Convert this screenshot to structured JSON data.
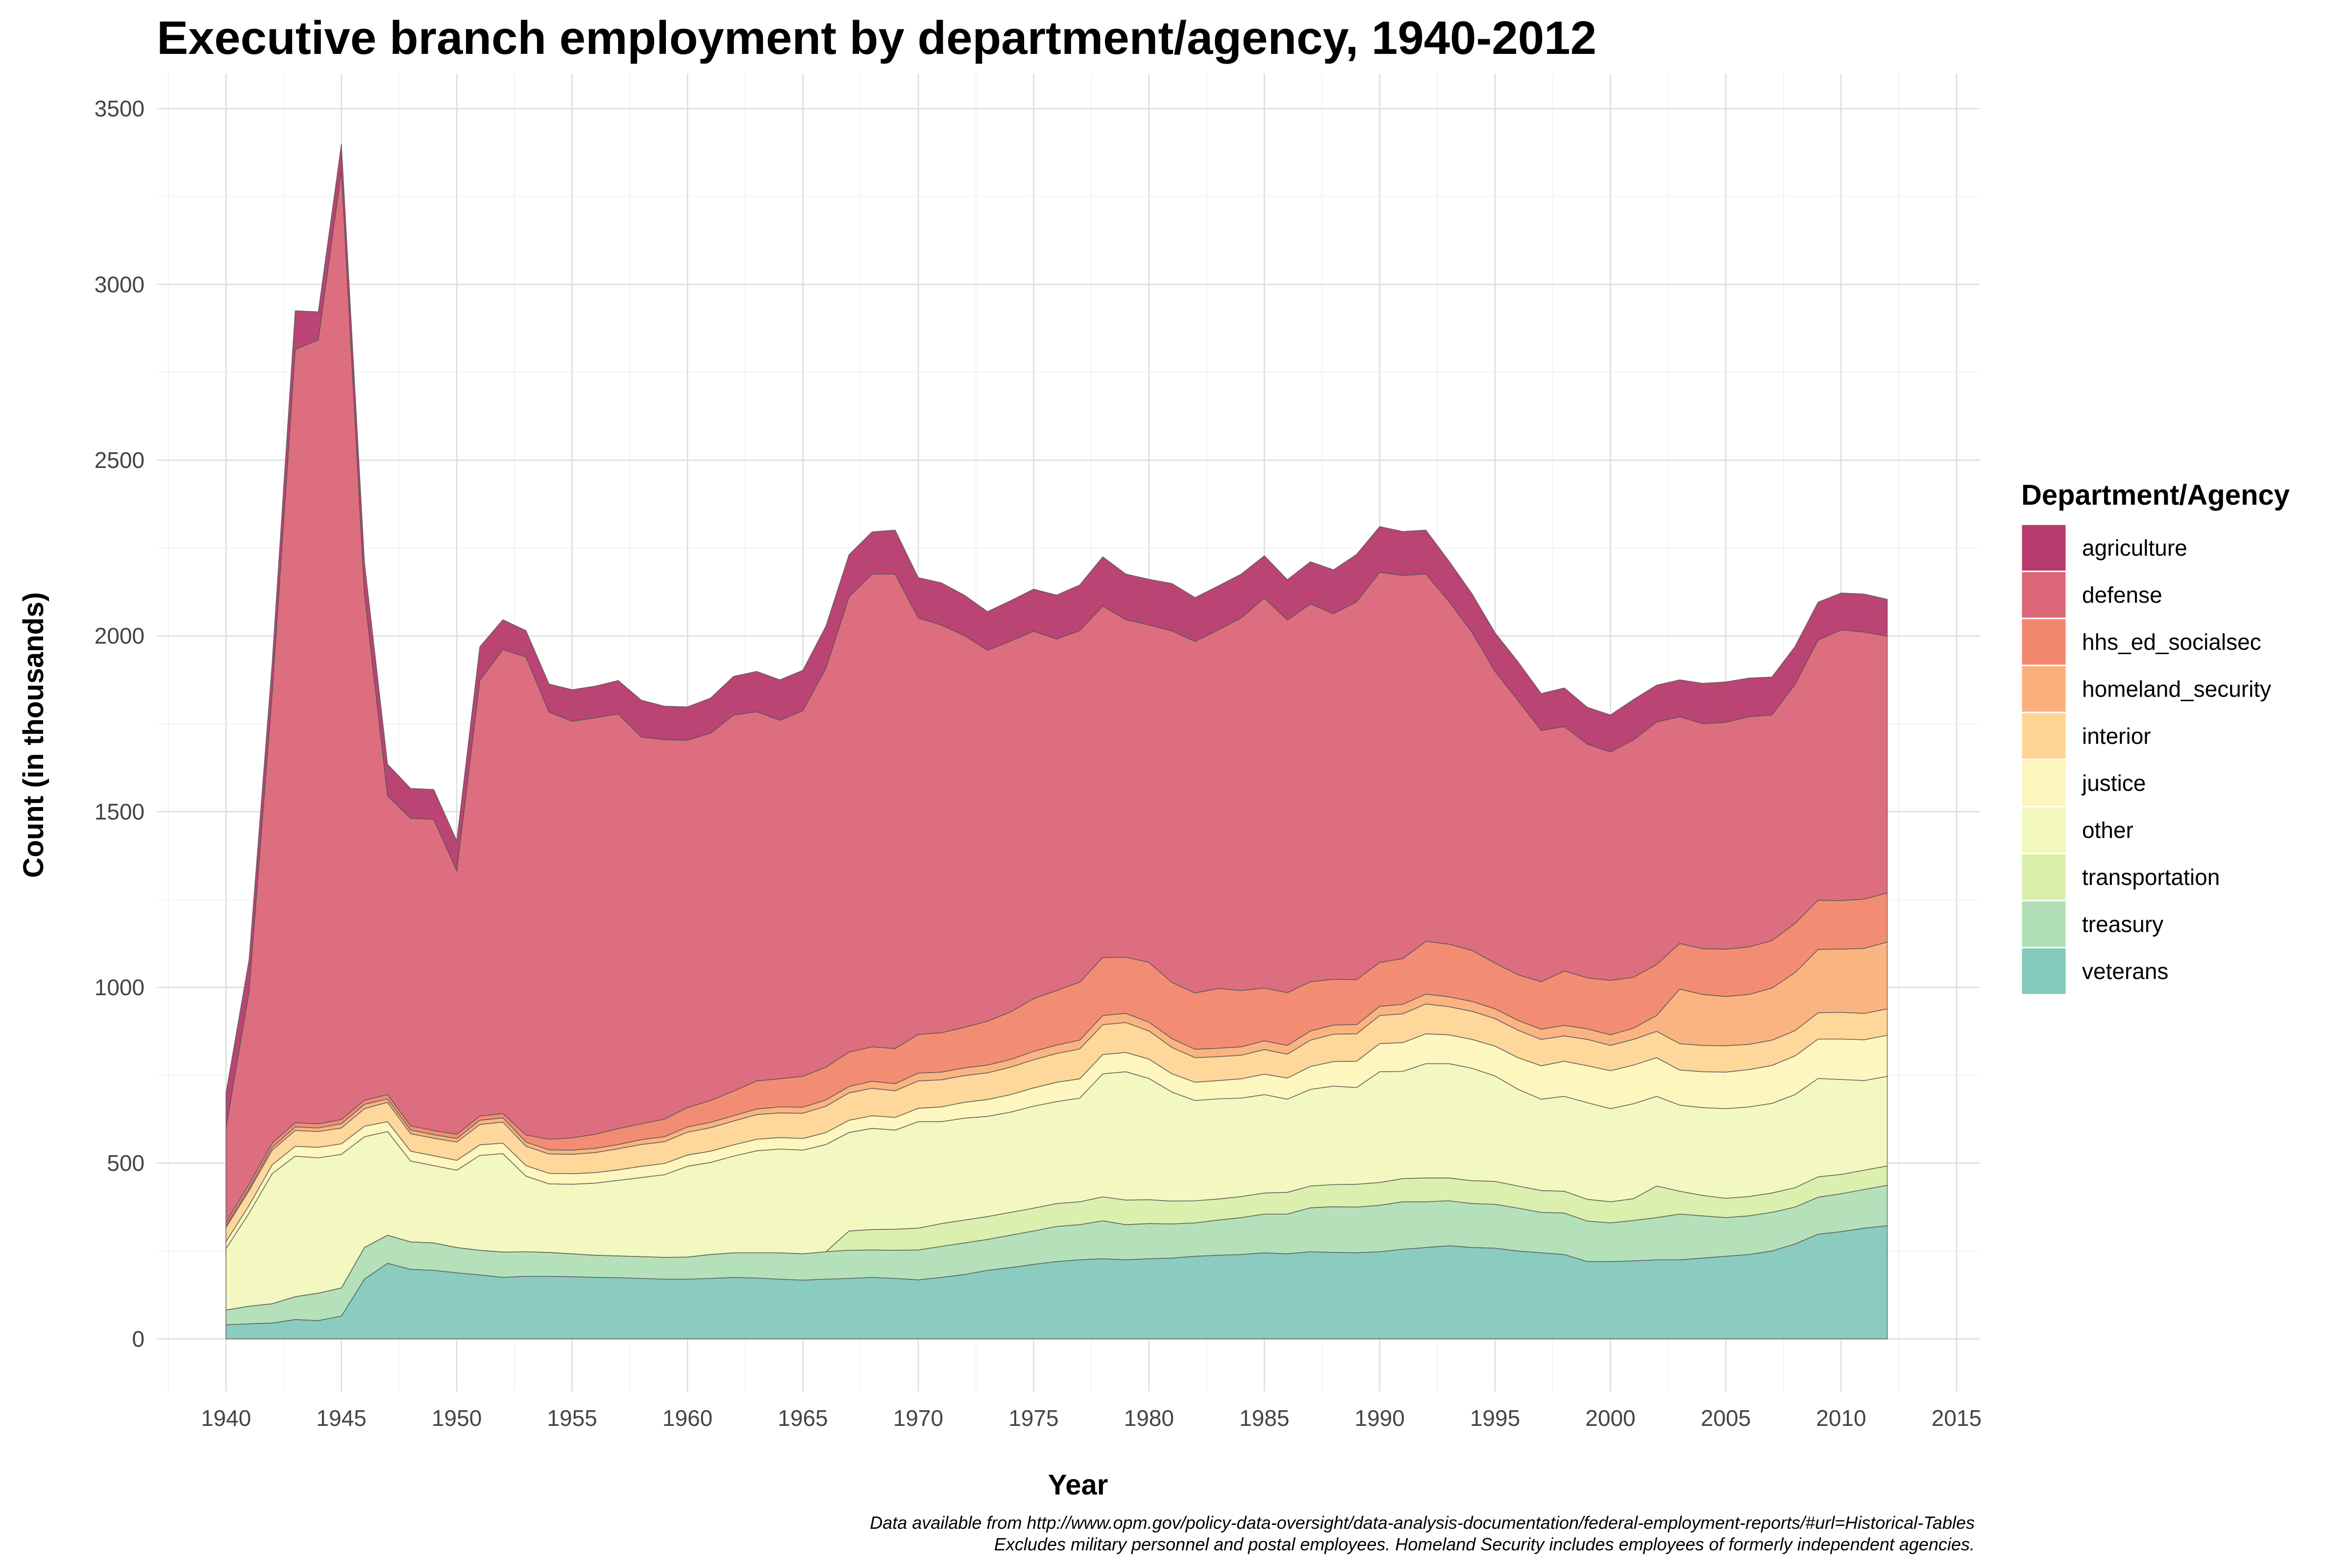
{
  "chart_data": {
    "type": "area",
    "title": "Executive branch employment by department/agency, 1940-2012",
    "xlabel": "Year",
    "ylabel": "Count (in thousands)",
    "xlim": [
      1937,
      2016
    ],
    "ylim": [
      -150,
      3600
    ],
    "x_ticks": [
      1940,
      1945,
      1950,
      1955,
      1960,
      1965,
      1970,
      1975,
      1980,
      1985,
      1990,
      1995,
      2000,
      2005,
      2010,
      2015
    ],
    "y_ticks": [
      0,
      500,
      1000,
      1500,
      2000,
      2500,
      3000,
      3500
    ],
    "x_tick_labels": [
      "1940",
      "1945",
      "1950",
      "1955",
      "1960",
      "1965",
      "1970",
      "1975",
      "1980",
      "1985",
      "1990",
      "1995",
      "2000",
      "2005",
      "2010",
      "2015"
    ],
    "y_tick_labels": [
      "0",
      "500",
      "1000",
      "1500",
      "2000",
      "2500",
      "3000",
      "3500"
    ],
    "grid": true,
    "stacked": true,
    "legend": {
      "title": "Department/Agency",
      "position": "right",
      "entries": [
        "agriculture",
        "defense",
        "hhs_ed_socialsec",
        "homeland_security",
        "interior",
        "justice",
        "other",
        "transportation",
        "treasury",
        "veterans"
      ]
    },
    "x": [
      1940,
      1941,
      1942,
      1943,
      1944,
      1945,
      1946,
      1947,
      1948,
      1949,
      1950,
      1951,
      1952,
      1953,
      1954,
      1955,
      1956,
      1957,
      1958,
      1959,
      1960,
      1961,
      1962,
      1963,
      1964,
      1965,
      1966,
      1967,
      1968,
      1969,
      1970,
      1971,
      1972,
      1973,
      1974,
      1975,
      1976,
      1977,
      1978,
      1979,
      1980,
      1981,
      1982,
      1983,
      1984,
      1985,
      1986,
      1987,
      1988,
      1989,
      1990,
      1991,
      1992,
      1993,
      1994,
      1995,
      1996,
      1997,
      1998,
      1999,
      2000,
      2001,
      2002,
      2003,
      2004,
      2005,
      2006,
      2007,
      2008,
      2009,
      2010,
      2011,
      2012
    ],
    "series": [
      {
        "name": "veterans",
        "color": "#84c9bd",
        "values": [
          40,
          43,
          45,
          55,
          52,
          65,
          170,
          215,
          198,
          195,
          188,
          182,
          175,
          178,
          178,
          177,
          175,
          174,
          172,
          170,
          170,
          172,
          175,
          173,
          170,
          167,
          170,
          172,
          175,
          172,
          168,
          175,
          183,
          195,
          203,
          212,
          220,
          225,
          228,
          225,
          228,
          230,
          235,
          238,
          240,
          245,
          242,
          248,
          246,
          245,
          248,
          255,
          260,
          265,
          260,
          258,
          250,
          245,
          240,
          220,
          220,
          222,
          225,
          225,
          230,
          235,
          240,
          250,
          270,
          298,
          305,
          315,
          322
        ]
      },
      {
        "name": "treasury",
        "color": "#b1dfb6",
        "values": [
          42,
          50,
          55,
          65,
          78,
          80,
          90,
          80,
          78,
          78,
          72,
          70,
          72,
          70,
          68,
          65,
          63,
          62,
          62,
          62,
          63,
          68,
          70,
          72,
          75,
          75,
          78,
          80,
          78,
          80,
          85,
          88,
          90,
          88,
          92,
          95,
          100,
          100,
          108,
          100,
          100,
          97,
          95,
          100,
          105,
          110,
          113,
          125,
          130,
          130,
          132,
          135,
          130,
          128,
          125,
          125,
          122,
          115,
          118,
          115,
          110,
          115,
          120,
          130,
          120,
          110,
          110,
          110,
          105,
          105,
          108,
          110,
          115
        ]
      },
      {
        "name": "transportation",
        "color": "#d9efaa",
        "values": [
          0,
          0,
          0,
          0,
          0,
          0,
          0,
          0,
          0,
          0,
          0,
          0,
          0,
          0,
          0,
          0,
          0,
          0,
          0,
          0,
          0,
          0,
          0,
          0,
          0,
          0,
          0,
          55,
          58,
          60,
          62,
          65,
          65,
          65,
          65,
          65,
          65,
          65,
          68,
          70,
          68,
          65,
          63,
          60,
          60,
          60,
          62,
          62,
          63,
          65,
          65,
          66,
          68,
          65,
          65,
          65,
          63,
          62,
          62,
          62,
          60,
          62,
          90,
          65,
          58,
          55,
          55,
          55,
          55,
          58,
          55,
          55,
          55
        ]
      },
      {
        "name": "other",
        "color": "#f2f8bd",
        "values": [
          175,
          265,
          370,
          400,
          385,
          380,
          315,
          295,
          230,
          220,
          220,
          270,
          280,
          215,
          195,
          198,
          205,
          215,
          225,
          235,
          258,
          262,
          275,
          290,
          295,
          295,
          305,
          280,
          288,
          282,
          303,
          290,
          290,
          285,
          285,
          290,
          290,
          295,
          350,
          365,
          345,
          310,
          285,
          285,
          280,
          280,
          265,
          275,
          280,
          275,
          315,
          305,
          325,
          325,
          320,
          300,
          275,
          260,
          270,
          275,
          265,
          270,
          255,
          245,
          250,
          255,
          255,
          255,
          265,
          280,
          270,
          255,
          255
        ]
      },
      {
        "name": "justice",
        "color": "#fdf5bb",
        "values": [
          20,
          22,
          25,
          28,
          30,
          30,
          30,
          28,
          28,
          28,
          28,
          30,
          30,
          30,
          30,
          30,
          30,
          30,
          32,
          32,
          32,
          32,
          32,
          33,
          33,
          33,
          34,
          35,
          36,
          36,
          38,
          42,
          45,
          48,
          50,
          52,
          55,
          55,
          55,
          55,
          55,
          52,
          52,
          52,
          55,
          58,
          60,
          65,
          70,
          75,
          80,
          82,
          85,
          82,
          82,
          85,
          90,
          95,
          100,
          105,
          108,
          110,
          110,
          100,
          102,
          104,
          106,
          108,
          110,
          112,
          115,
          116,
          117
        ]
      },
      {
        "name": "interior",
        "color": "#fed595",
        "values": [
          40,
          42,
          42,
          45,
          45,
          45,
          50,
          55,
          50,
          50,
          52,
          58,
          60,
          55,
          55,
          55,
          57,
          60,
          62,
          62,
          65,
          67,
          68,
          70,
          70,
          72,
          75,
          78,
          78,
          76,
          78,
          77,
          76,
          76,
          78,
          80,
          82,
          85,
          85,
          85,
          80,
          75,
          70,
          68,
          67,
          70,
          68,
          75,
          78,
          78,
          80,
          82,
          85,
          80,
          80,
          78,
          78,
          75,
          72,
          75,
          72,
          73,
          75,
          75,
          75,
          75,
          72,
          72,
          72,
          75,
          76,
          75,
          75
        ]
      },
      {
        "name": "homeland_security",
        "color": "#fab07b",
        "values": [
          5,
          6,
          8,
          10,
          10,
          12,
          12,
          10,
          10,
          10,
          10,
          12,
          12,
          12,
          12,
          12,
          12,
          12,
          14,
          14,
          15,
          15,
          15,
          16,
          17,
          17,
          18,
          18,
          20,
          20,
          22,
          22,
          22,
          22,
          22,
          24,
          24,
          25,
          26,
          26,
          25,
          25,
          24,
          24,
          24,
          25,
          25,
          26,
          26,
          26,
          26,
          27,
          28,
          28,
          28,
          28,
          28,
          29,
          30,
          30,
          30,
          32,
          45,
          155,
          145,
          140,
          142,
          148,
          165,
          180,
          180,
          185,
          190
        ]
      },
      {
        "name": "hhs_ed_socialsec",
        "color": "#f1876c",
        "values": [
          10,
          12,
          12,
          12,
          12,
          12,
          12,
          12,
          12,
          12,
          12,
          12,
          12,
          20,
          30,
          35,
          40,
          45,
          45,
          50,
          55,
          62,
          70,
          80,
          80,
          88,
          93,
          98,
          98,
          100,
          110,
          112,
          115,
          125,
          135,
          150,
          155,
          165,
          165,
          160,
          170,
          160,
          160,
          170,
          160,
          150,
          150,
          140,
          130,
          128,
          125,
          130,
          150,
          150,
          145,
          130,
          130,
          135,
          155,
          145,
          155,
          145,
          145,
          130,
          130,
          135,
          135,
          135,
          140,
          140,
          138,
          140,
          140
        ]
      },
      {
        "name": "defense",
        "color": "#db6678",
        "values": [
          268,
          550,
          1280,
          2200,
          2230,
          2700,
          1440,
          850,
          875,
          885,
          750,
          1240,
          1320,
          1360,
          1215,
          1185,
          1185,
          1180,
          1100,
          1080,
          1045,
          1045,
          1070,
          1050,
          1020,
          1040,
          1135,
          1295,
          1345,
          1350,
          1185,
          1160,
          1115,
          1055,
          1055,
          1045,
          1000,
          1000,
          1000,
          960,
          960,
          1000,
          1000,
          1020,
          1060,
          1110,
          1060,
          1075,
          1040,
          1075,
          1110,
          1090,
          1045,
          975,
          905,
          830,
          780,
          715,
          695,
          665,
          650,
          675,
          690,
          645,
          640,
          645,
          655,
          642,
          680,
          740,
          770,
          760,
          730
        ]
      },
      {
        "name": "agriculture",
        "color": "#b63a6c",
        "values": [
          100,
          90,
          85,
          110,
          80,
          75,
          90,
          90,
          85,
          85,
          85,
          95,
          85,
          75,
          80,
          90,
          90,
          95,
          105,
          95,
          95,
          100,
          110,
          115,
          115,
          115,
          120,
          120,
          120,
          125,
          115,
          120,
          115,
          110,
          115,
          120,
          125,
          130,
          140,
          130,
          130,
          135,
          125,
          125,
          125,
          120,
          115,
          120,
          125,
          135,
          130,
          125,
          125,
          115,
          110,
          110,
          110,
          105,
          110,
          105,
          105,
          115,
          105,
          105,
          115,
          115,
          110,
          108,
          108,
          108,
          105,
          108,
          105
        ]
      }
    ],
    "caption": [
      "Data available from http://www.opm.gov/policy-data-oversight/data-analysis-documentation/federal-employment-reports/#url=Historical-Tables",
      "Excludes military personnel and postal employees. Homeland Security includes employees of formerly independent agencies."
    ]
  }
}
